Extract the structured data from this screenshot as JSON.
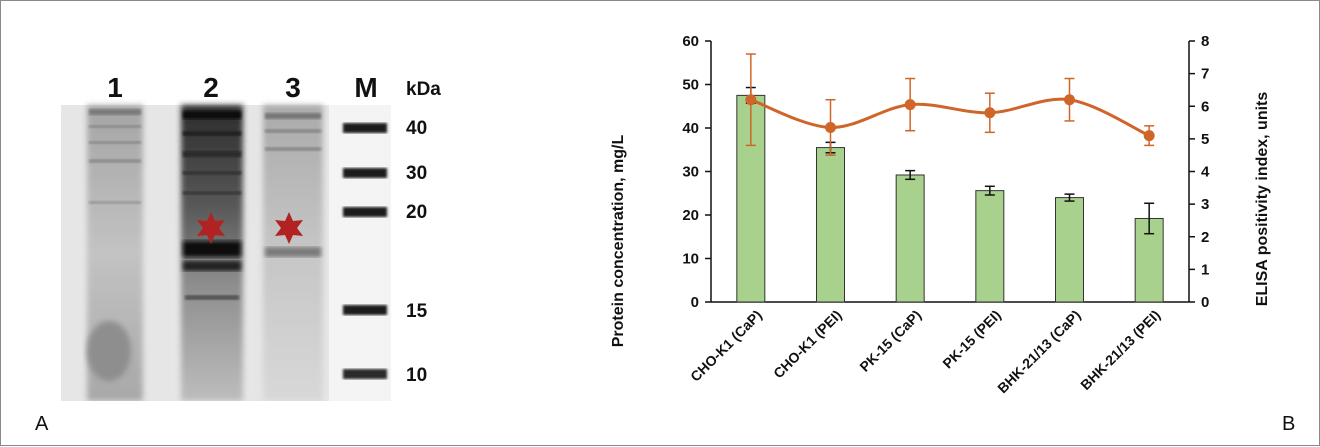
{
  "figure": {
    "panel_a_label": "A",
    "panel_b_label": "B"
  },
  "gel": {
    "lanes": [
      "1",
      "2",
      "3",
      "M"
    ],
    "unit_label": "kDa",
    "marker_labels": [
      "40",
      "30",
      "20",
      "15",
      "10"
    ],
    "star_color": "#b22222"
  },
  "chart_data": {
    "type": "bar",
    "categories": [
      "CHO-K1 (CaP)",
      "CHO-K1 (PEI)",
      "PK-15 (CaP)",
      "PK-15 (PEI)",
      "BHK-21/13 (CaP)",
      "BHK-21/13 (PEI)"
    ],
    "series": [
      {
        "type": "bar",
        "axis": "left",
        "color": "#a9d18e",
        "values": [
          47.5,
          35.5,
          29.2,
          25.6,
          24.0,
          19.2
        ],
        "errors": [
          1.8,
          1.2,
          1.0,
          1.0,
          0.8,
          3.5
        ]
      },
      {
        "type": "line",
        "axis": "right",
        "color": "#d0652a",
        "values": [
          6.2,
          5.35,
          6.05,
          5.8,
          6.2,
          5.1
        ],
        "errors": [
          1.4,
          0.85,
          0.8,
          0.6,
          0.65,
          0.3
        ]
      }
    ],
    "ylabel": "Protein concentration, mg/L",
    "y2label": "ELISA positivity index, units",
    "ylim": [
      0,
      60
    ],
    "y2lim": [
      0,
      8
    ],
    "yticks": [
      "0",
      "10",
      "20",
      "30",
      "40",
      "50",
      "60"
    ],
    "y2ticks": [
      "0",
      "1",
      "2",
      "3",
      "4",
      "5",
      "6",
      "7",
      "8"
    ]
  }
}
